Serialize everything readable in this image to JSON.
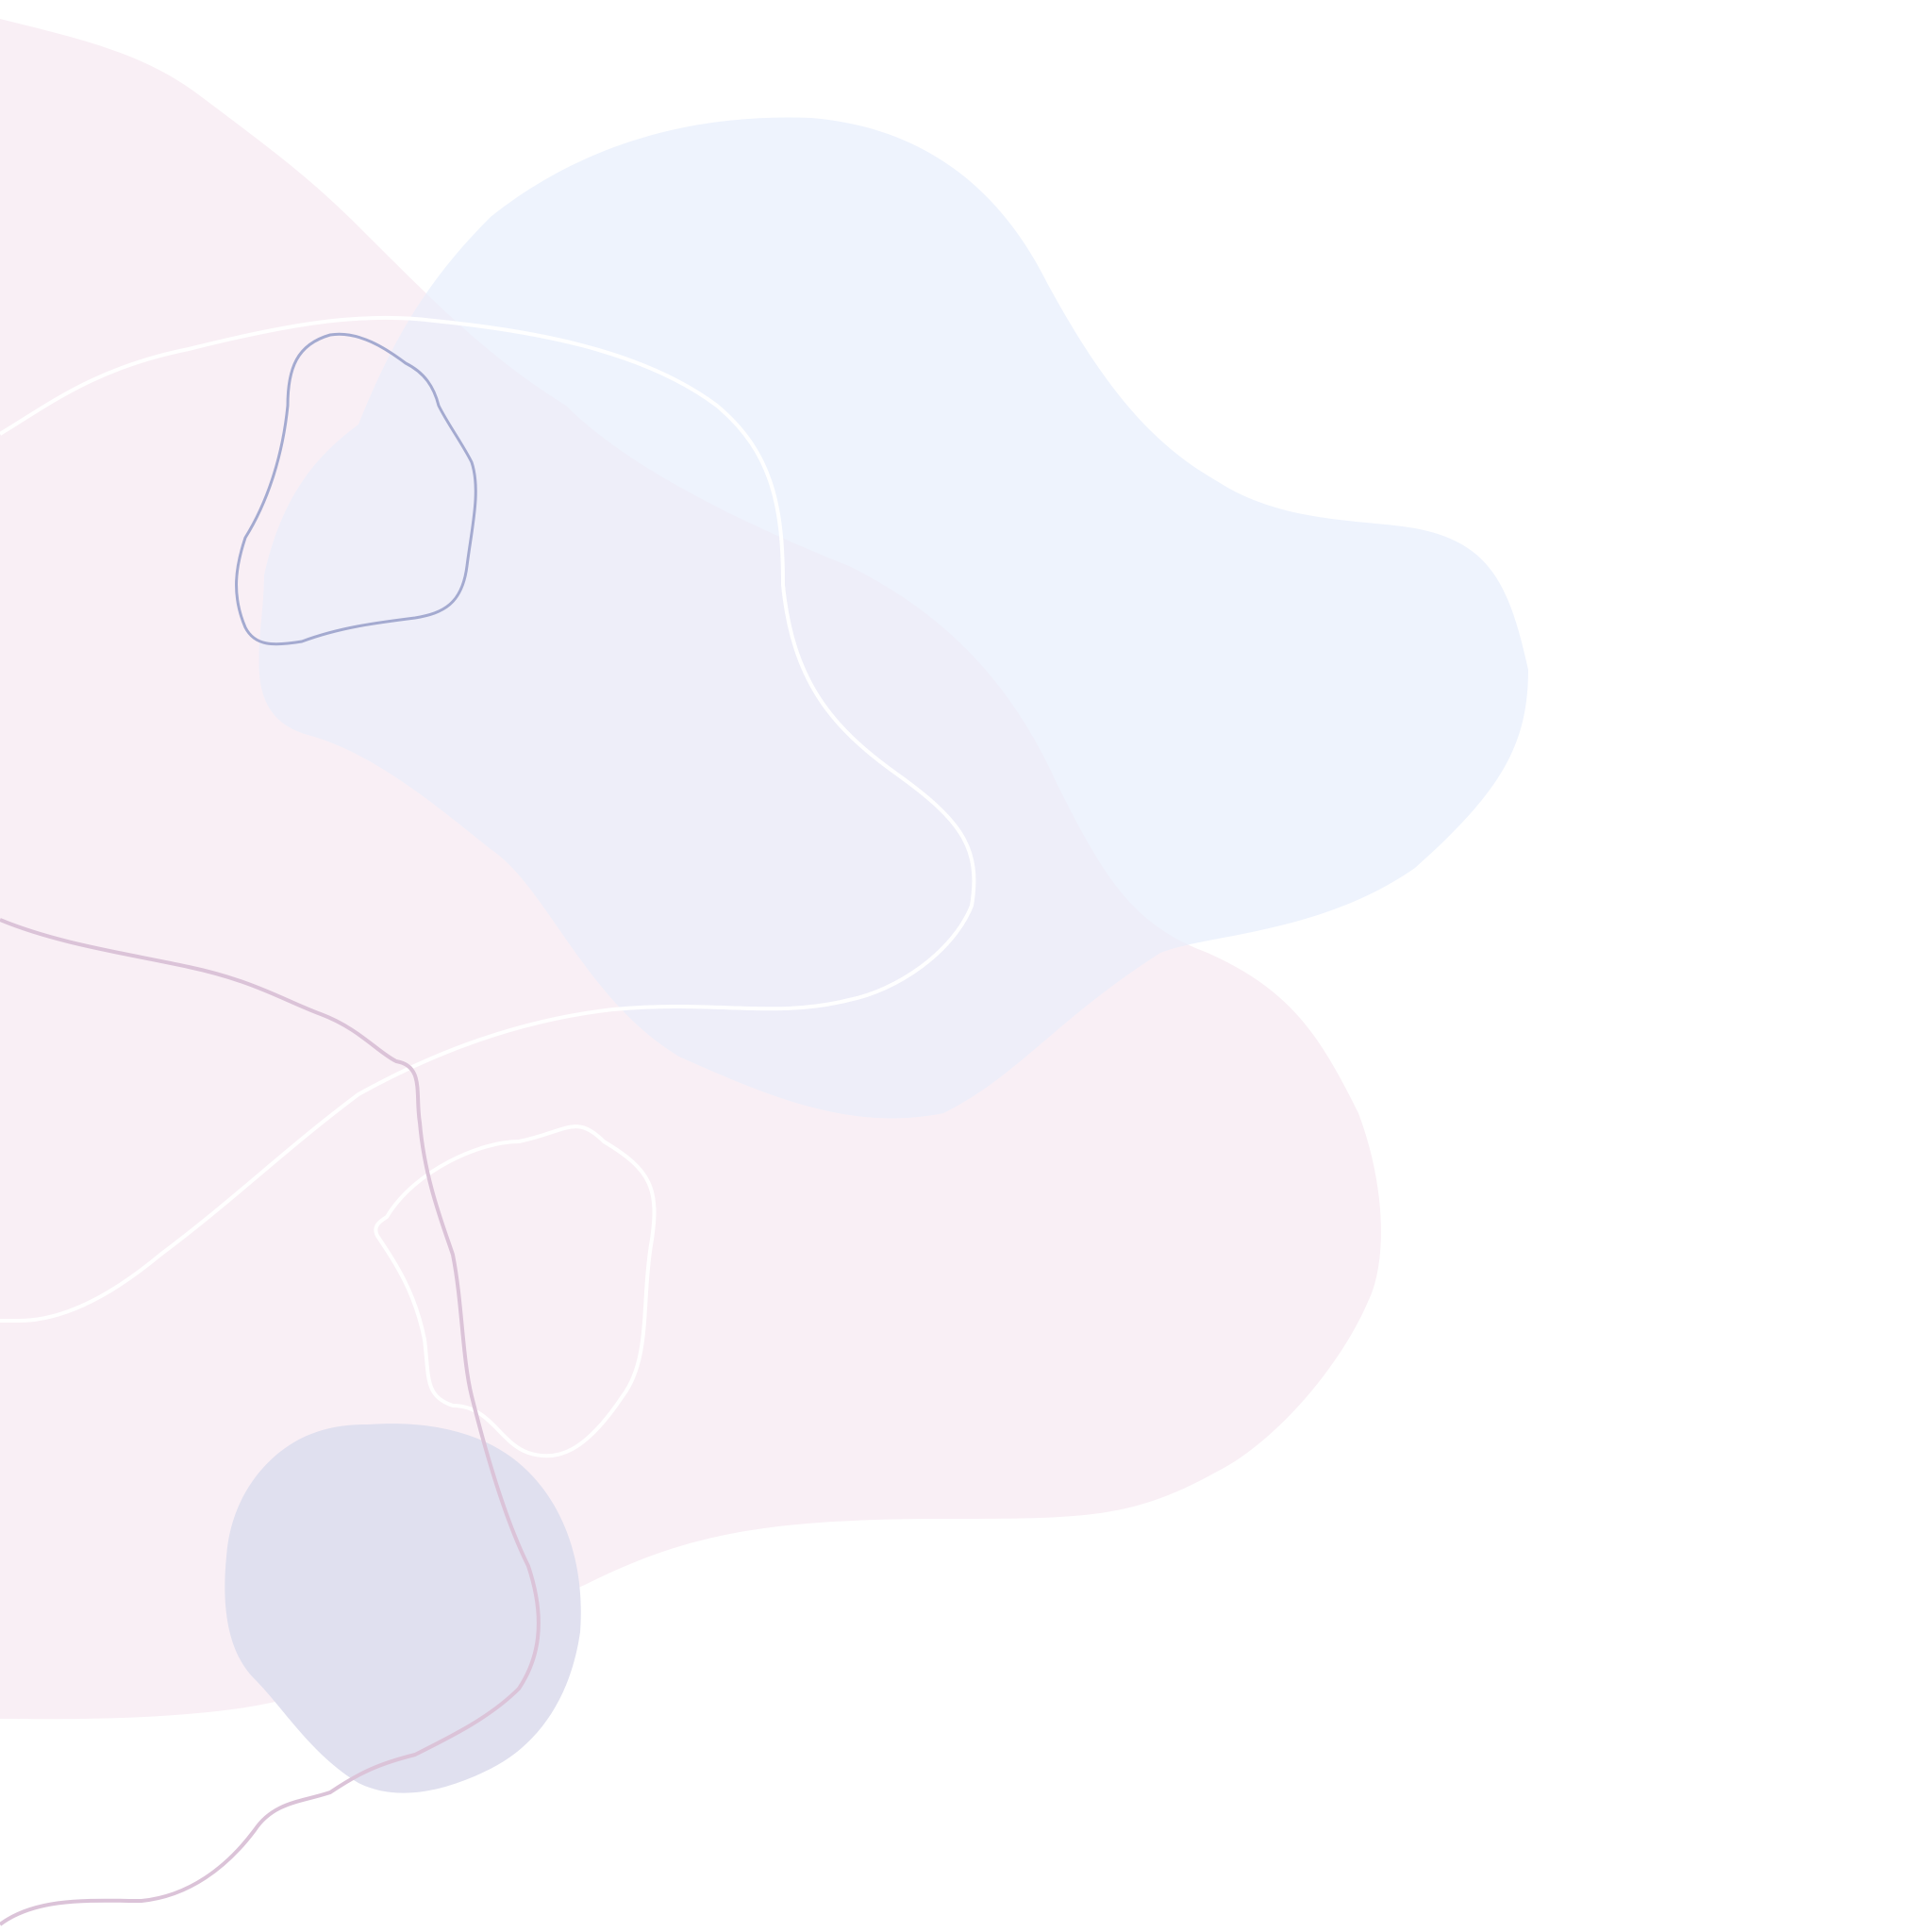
{
  "palette": {
    "background": "#ffffff",
    "pink_blob": "#f9eff5",
    "blue_blob": "#eef3fd",
    "overlap_tint": "#eeeef9",
    "lavender_blob": "#e0e0ef",
    "outline_navy": "#a4aad0",
    "outline_white": "#ffffff",
    "outline_mauve": "#dbc3d8"
  }
}
